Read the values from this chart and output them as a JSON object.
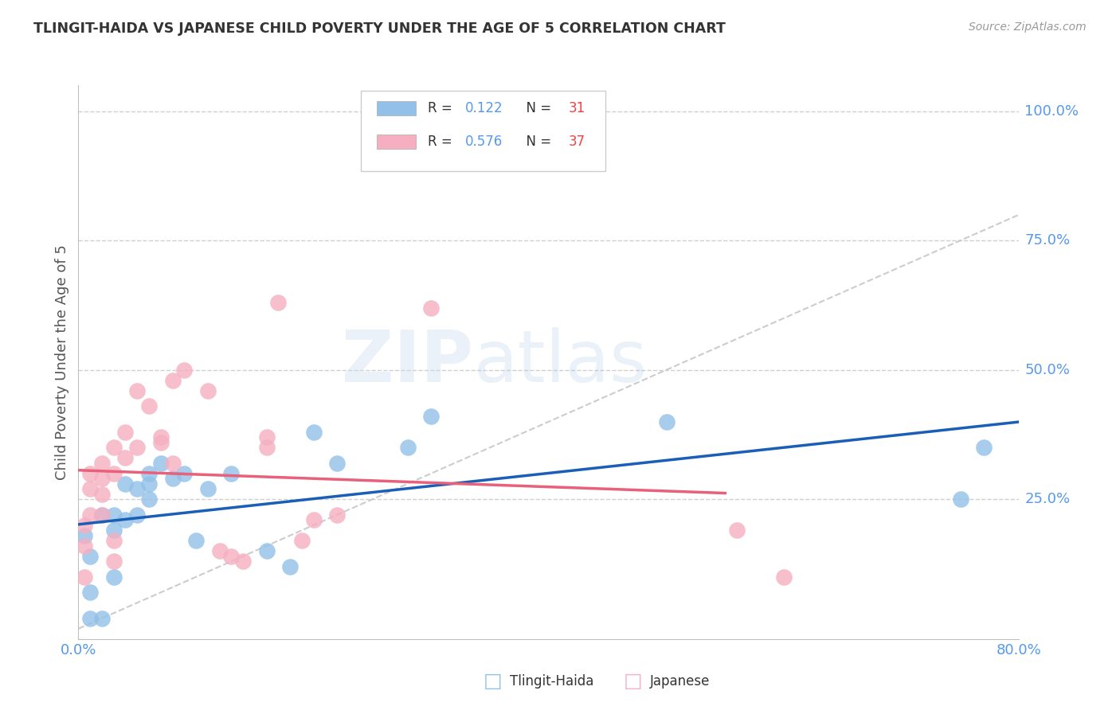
{
  "title": "TLINGIT-HAIDA VS JAPANESE CHILD POVERTY UNDER THE AGE OF 5 CORRELATION CHART",
  "source": "Source: ZipAtlas.com",
  "ylabel": "Child Poverty Under the Age of 5",
  "xlim": [
    0.0,
    0.8
  ],
  "ylim": [
    -0.02,
    1.05
  ],
  "xtick_left": 0.0,
  "xtick_right": 0.8,
  "xtick_left_label": "0.0%",
  "xtick_right_label": "80.0%",
  "yticks_right": [
    0.25,
    0.5,
    0.75,
    1.0
  ],
  "yticklabels_right": [
    "25.0%",
    "50.0%",
    "75.0%",
    "100.0%"
  ],
  "tlingit_color": "#92c0e8",
  "japanese_color": "#f5afc0",
  "tlingit_line_color": "#1a5eb8",
  "japanese_line_color": "#e8607a",
  "ref_line_color": "#c0c0c0",
  "watermark": "ZIPatlas",
  "tlingit_x": [
    0.005,
    0.01,
    0.01,
    0.01,
    0.02,
    0.02,
    0.03,
    0.03,
    0.03,
    0.04,
    0.04,
    0.05,
    0.05,
    0.06,
    0.06,
    0.06,
    0.07,
    0.08,
    0.09,
    0.1,
    0.11,
    0.13,
    0.16,
    0.18,
    0.2,
    0.22,
    0.28,
    0.3,
    0.5,
    0.75,
    0.77
  ],
  "tlingit_y": [
    0.18,
    0.02,
    0.14,
    0.07,
    0.22,
    0.02,
    0.22,
    0.19,
    0.1,
    0.28,
    0.21,
    0.27,
    0.22,
    0.28,
    0.3,
    0.25,
    0.32,
    0.29,
    0.3,
    0.17,
    0.27,
    0.3,
    0.15,
    0.12,
    0.38,
    0.32,
    0.35,
    0.41,
    0.4,
    0.25,
    0.35
  ],
  "japanese_x": [
    0.005,
    0.005,
    0.005,
    0.01,
    0.01,
    0.01,
    0.02,
    0.02,
    0.02,
    0.02,
    0.03,
    0.03,
    0.03,
    0.03,
    0.04,
    0.04,
    0.05,
    0.05,
    0.06,
    0.07,
    0.07,
    0.08,
    0.08,
    0.09,
    0.11,
    0.12,
    0.13,
    0.14,
    0.16,
    0.16,
    0.17,
    0.19,
    0.2,
    0.22,
    0.3,
    0.56,
    0.6
  ],
  "japanese_y": [
    0.2,
    0.16,
    0.1,
    0.3,
    0.27,
    0.22,
    0.32,
    0.29,
    0.26,
    0.22,
    0.35,
    0.3,
    0.17,
    0.13,
    0.38,
    0.33,
    0.46,
    0.35,
    0.43,
    0.37,
    0.36,
    0.48,
    0.32,
    0.5,
    0.46,
    0.15,
    0.14,
    0.13,
    0.37,
    0.35,
    0.63,
    0.17,
    0.21,
    0.22,
    0.62,
    0.19,
    0.1
  ],
  "background_color": "#ffffff",
  "grid_color": "#d0d0d0",
  "spine_color": "#c0c0c0",
  "tick_color": "#5599ee",
  "text_color": "#555555",
  "legend_r_color": "#5599ee",
  "legend_n_color": "#ee4444"
}
